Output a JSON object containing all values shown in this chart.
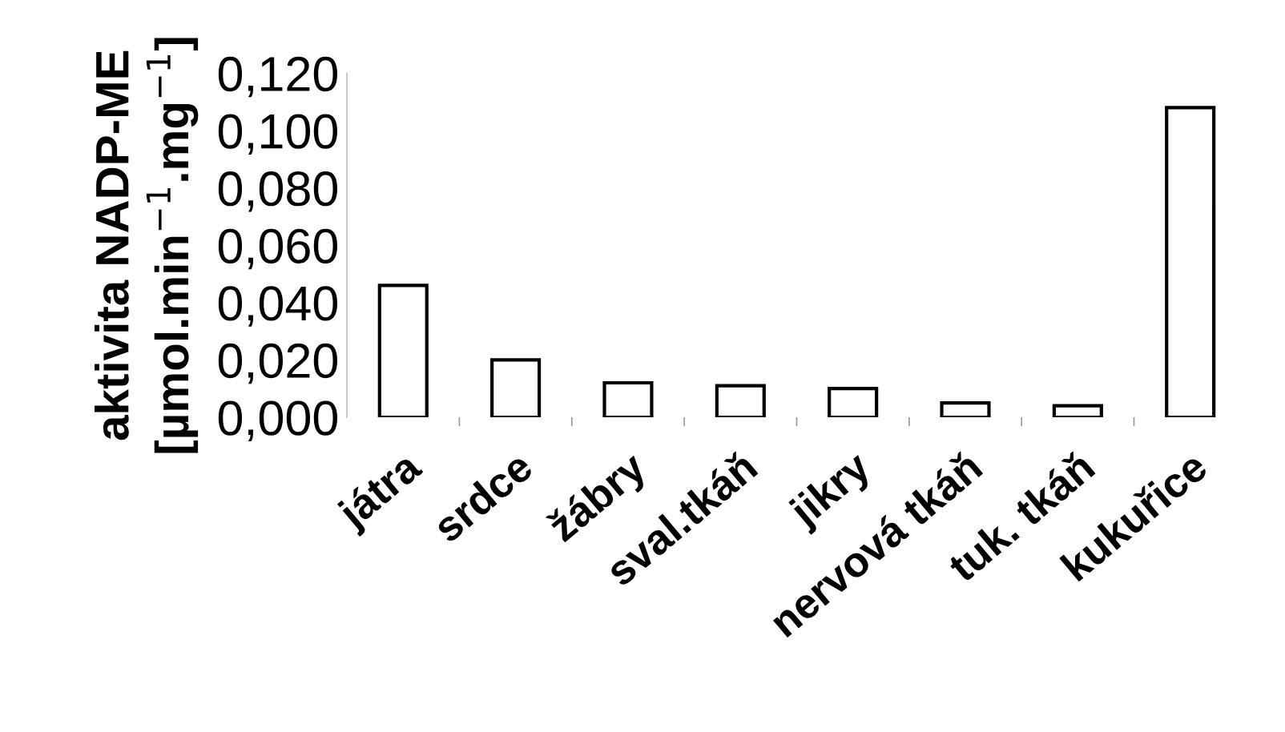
{
  "chart_data": {
    "type": "bar",
    "ylabel": "aktivita NADP-ME\n[µmol.min$^{−1}$.mg$^{−1}$]",
    "categories": [
      "játra",
      "srdce",
      "žábry",
      "sval.tkáň",
      "jikry",
      "nervová tkáň",
      "tuk. tkáň",
      "kukuřice"
    ],
    "values": [
      0.046,
      0.02,
      0.012,
      0.011,
      0.01,
      0.005,
      0.004,
      0.108
    ],
    "color": "#ffffff",
    "ylim": [
      0,
      0.12
    ],
    "yticks": [
      {
        "value": 0,
        "label": "0,000"
      },
      {
        "value": 0.02,
        "label": "0,020"
      },
      {
        "value": 0.04,
        "label": "0,040"
      },
      {
        "value": 0.06,
        "label": "0,060"
      },
      {
        "value": 0.08,
        "label": "0,080"
      },
      {
        "value": 0.1,
        "label": "0,100"
      },
      {
        "value": 0.12,
        "label": "0,120"
      }
    ],
    "grid": false,
    "legend": false
  }
}
